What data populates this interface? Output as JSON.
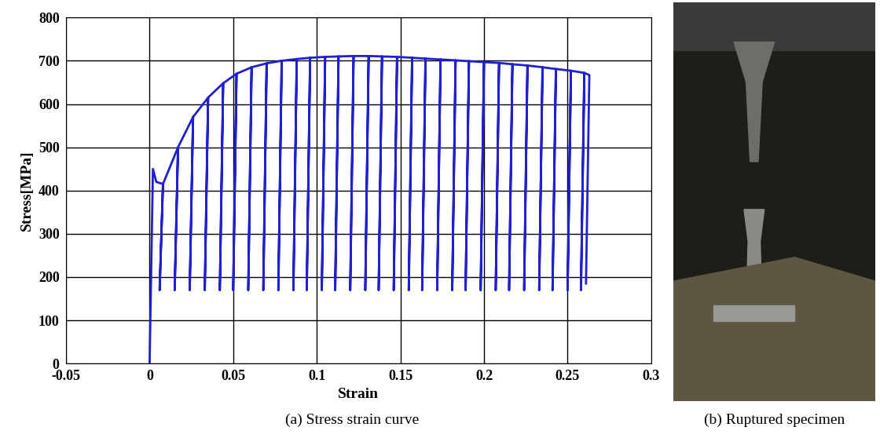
{
  "chart_data": {
    "type": "line",
    "caption": "(a) Stress strain curve",
    "x_label": "Strain",
    "y_label": "Stress[MPa]",
    "x": [
      0,
      0.002,
      0.004,
      0.008,
      0.006,
      0.008,
      0.017,
      0.015,
      0.017,
      0.026,
      0.024,
      0.026,
      0.035,
      0.033,
      0.035,
      0.044,
      0.042,
      0.044,
      0.052,
      0.05,
      0.052,
      0.061,
      0.059,
      0.061,
      0.07,
      0.068,
      0.07,
      0.079,
      0.077,
      0.079,
      0.088,
      0.086,
      0.088,
      0.096,
      0.094,
      0.096,
      0.105,
      0.103,
      0.105,
      0.113,
      0.111,
      0.113,
      0.122,
      0.12,
      0.122,
      0.131,
      0.129,
      0.131,
      0.139,
      0.137,
      0.139,
      0.148,
      0.146,
      0.148,
      0.157,
      0.155,
      0.157,
      0.165,
      0.163,
      0.165,
      0.174,
      0.172,
      0.174,
      0.183,
      0.181,
      0.183,
      0.191,
      0.189,
      0.191,
      0.2,
      0.198,
      0.2,
      0.209,
      0.207,
      0.209,
      0.217,
      0.215,
      0.217,
      0.226,
      0.224,
      0.226,
      0.235,
      0.233,
      0.235,
      0.243,
      0.241,
      0.243,
      0.252,
      0.25,
      0.252,
      0.26,
      0.258,
      0.26,
      0.263,
      0.261
    ],
    "values": [
      0,
      450,
      420,
      415,
      170,
      415,
      500,
      170,
      500,
      570,
      170,
      570,
      615,
      170,
      615,
      648,
      170,
      648,
      670,
      170,
      670,
      685,
      170,
      685,
      694,
      170,
      694,
      700,
      170,
      700,
      704,
      170,
      704,
      707,
      170,
      707,
      709,
      170,
      709,
      710,
      170,
      710,
      711,
      170,
      711,
      711,
      170,
      711,
      710,
      170,
      710,
      709,
      170,
      709,
      707,
      170,
      707,
      705,
      170,
      705,
      703,
      170,
      703,
      701,
      170,
      701,
      699,
      170,
      699,
      697,
      170,
      697,
      695,
      170,
      695,
      692,
      170,
      692,
      689,
      170,
      689,
      685,
      170,
      685,
      681,
      170,
      681,
      677,
      170,
      677,
      672,
      170,
      672,
      667,
      185
    ],
    "color": "#2020d0",
    "xlim": [
      -0.05,
      0.3
    ],
    "xticks": [
      -0.05,
      0,
      0.05,
      0.1,
      0.15,
      0.2,
      0.25,
      0.3
    ],
    "ylim": [
      0,
      800
    ],
    "yticks": [
      0,
      100,
      200,
      300,
      400,
      500,
      600,
      700,
      800
    ],
    "grid": true
  },
  "photo": {
    "caption": "(b) Ruptured specimen"
  }
}
